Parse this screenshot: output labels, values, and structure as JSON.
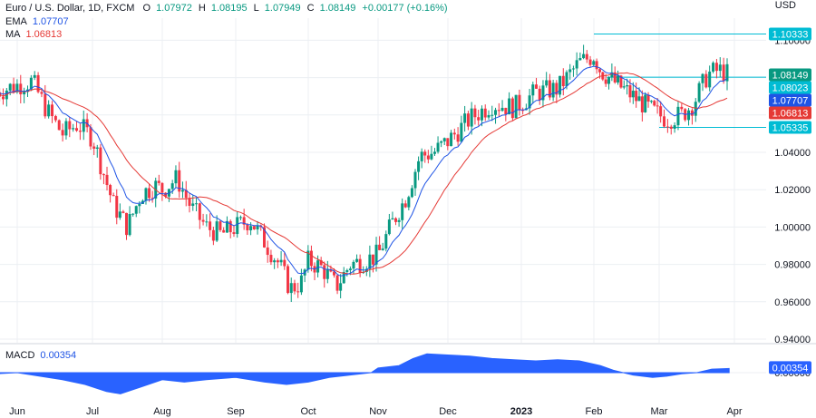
{
  "header": {
    "symbol": "Euro / U.S. Dollar, 1D, FXCM",
    "open_label": "O",
    "open": "1.07972",
    "high_label": "H",
    "high": "1.08195",
    "low_label": "L",
    "low": "1.07949",
    "close_label": "C",
    "close": "1.08149",
    "change": "+0.00177 (+0.16%)",
    "ema_label": "EMA",
    "ema_value": "1.07707",
    "ma_label": "MA",
    "ma_value": "1.06813",
    "currency": "USD"
  },
  "macd": {
    "label": "MACD",
    "value": "0.00354"
  },
  "colors": {
    "up": "#089981",
    "down": "#f23645",
    "ema": "#1e53e5",
    "ma": "#e53935",
    "macd": "#2962ff",
    "level": "#00bcd4",
    "grid": "#eceff3"
  },
  "chart_data": [
    {
      "type": "candlestick",
      "title": "Euro / U.S. Dollar, 1D, FXCM",
      "x_tick_labels": [
        "Jun",
        "Jul",
        "Aug",
        "Sep",
        "Oct",
        "Nov",
        "Dec",
        "2023",
        "Feb",
        "Mar",
        "Apr"
      ],
      "y_tick_labels": [
        "1.10000",
        "1.08000",
        "1.06000",
        "1.04000",
        "1.02000",
        "1.00000",
        "0.98000",
        "0.96000",
        "0.94000"
      ],
      "ylim": [
        0.94,
        1.11
      ],
      "price_tags": [
        {
          "label": "1.10333",
          "value": 1.10333,
          "color": "#00bcd4"
        },
        {
          "label": "1.08149",
          "value": 1.08149,
          "color": "#089981"
        },
        {
          "label": "1.08023",
          "value": 1.08023,
          "color": "#00bcd4"
        },
        {
          "label": "1.07707",
          "value": 1.07707,
          "color": "#1e53e5"
        },
        {
          "label": "1.06813",
          "value": 1.06813,
          "color": "#e53935"
        },
        {
          "label": "1.05335",
          "value": 1.05335,
          "color": "#00bcd4"
        }
      ],
      "horizontal_levels": [
        {
          "value": 1.10333,
          "from_month": 8.0
        },
        {
          "value": 1.08023,
          "from_month": 8.2
        },
        {
          "value": 1.05335,
          "from_month": 9.0
        }
      ],
      "monthly_closes": [
        {
          "month": "Jun",
          "close": 1.066
        },
        {
          "month": "Jul",
          "close": 1.002
        },
        {
          "month": "Aug",
          "close": 1.016
        },
        {
          "month": "Sep",
          "close": 1.0
        },
        {
          "month": "Oct",
          "close": 0.995
        },
        {
          "month": "Nov",
          "close": 0.988
        },
        {
          "month": "Dec",
          "close": 1.046
        },
        {
          "month": "2023",
          "close": 1.065
        },
        {
          "month": "Feb",
          "close": 1.094
        },
        {
          "month": "Mar",
          "close": 1.056
        },
        {
          "month": "Apr",
          "close": 1.0815
        }
      ],
      "price_path": [
        [
          -0.3,
          1.072
        ],
        [
          0.0,
          1.076
        ],
        [
          0.2,
          1.078
        ],
        [
          0.4,
          1.062
        ],
        [
          0.6,
          1.05
        ],
        [
          0.8,
          1.055
        ],
        [
          1.0,
          1.048
        ],
        [
          1.15,
          1.03
        ],
        [
          1.3,
          1.012
        ],
        [
          1.5,
          1.0
        ],
        [
          1.7,
          1.018
        ],
        [
          1.9,
          1.022
        ],
        [
          2.0,
          1.02
        ],
        [
          2.2,
          1.026
        ],
        [
          2.4,
          1.01
        ],
        [
          2.6,
          1.0
        ],
        [
          2.8,
          0.996
        ],
        [
          3.0,
          1.0
        ],
        [
          3.2,
          1.004
        ],
        [
          3.4,
          0.992
        ],
        [
          3.6,
          0.98
        ],
        [
          3.75,
          0.967
        ],
        [
          3.9,
          0.97
        ],
        [
          4.0,
          0.982
        ],
        [
          4.2,
          0.978
        ],
        [
          4.4,
          0.968
        ],
        [
          4.6,
          0.98
        ],
        [
          4.8,
          0.982
        ],
        [
          5.0,
          0.985
        ],
        [
          5.2,
          1.002
        ],
        [
          5.4,
          1.016
        ],
        [
          5.6,
          1.038
        ],
        [
          5.8,
          1.04
        ],
        [
          6.0,
          1.046
        ],
        [
          6.3,
          1.058
        ],
        [
          6.6,
          1.066
        ],
        [
          6.9,
          1.064
        ],
        [
          7.2,
          1.072
        ],
        [
          7.5,
          1.074
        ],
        [
          7.8,
          1.088
        ],
        [
          8.0,
          1.092
        ],
        [
          8.1,
          1.084
        ],
        [
          8.3,
          1.078
        ],
        [
          8.6,
          1.07
        ],
        [
          8.9,
          1.062
        ],
        [
          9.1,
          1.058
        ],
        [
          9.3,
          1.06
        ],
        [
          9.45,
          1.066
        ],
        [
          9.65,
          1.082
        ],
        [
          9.8,
          1.084
        ],
        [
          9.93,
          1.0815
        ]
      ]
    },
    {
      "type": "area",
      "title": "MACD",
      "value_label": "0.00354",
      "y_tick_labels": [
        "0.00000"
      ],
      "values_by_month": [
        [
          -0.3,
          -0.001
        ],
        [
          0.0,
          0.0
        ],
        [
          0.3,
          -0.003
        ],
        [
          0.6,
          -0.006
        ],
        [
          0.9,
          -0.01
        ],
        [
          1.2,
          -0.016
        ],
        [
          1.4,
          -0.018
        ],
        [
          1.7,
          -0.012
        ],
        [
          2.0,
          -0.006
        ],
        [
          2.3,
          -0.008
        ],
        [
          2.6,
          -0.006
        ],
        [
          3.0,
          -0.004
        ],
        [
          3.4,
          -0.008
        ],
        [
          3.7,
          -0.01
        ],
        [
          4.0,
          -0.008
        ],
        [
          4.3,
          -0.004
        ],
        [
          4.6,
          -0.002
        ],
        [
          4.9,
          0.0
        ],
        [
          5.0,
          0.004
        ],
        [
          5.3,
          0.006
        ],
        [
          5.5,
          0.012
        ],
        [
          5.7,
          0.016
        ],
        [
          6.0,
          0.015
        ],
        [
          6.3,
          0.014
        ],
        [
          6.6,
          0.012
        ],
        [
          6.9,
          0.011
        ],
        [
          7.2,
          0.01
        ],
        [
          7.5,
          0.011
        ],
        [
          7.8,
          0.01
        ],
        [
          8.1,
          0.006
        ],
        [
          8.3,
          0.002
        ],
        [
          8.6,
          -0.002
        ],
        [
          8.9,
          -0.004
        ],
        [
          9.1,
          -0.003
        ],
        [
          9.3,
          -0.001
        ],
        [
          9.5,
          0.0
        ],
        [
          9.7,
          0.003
        ],
        [
          9.93,
          0.00354
        ]
      ]
    }
  ]
}
